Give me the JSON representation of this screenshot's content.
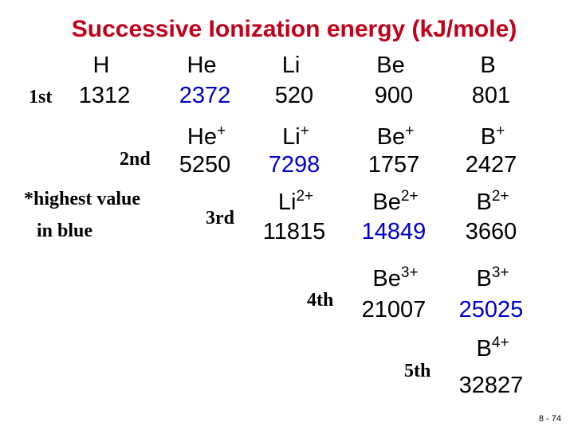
{
  "title": "Successive Ionization energy (kJ/mole)",
  "colors": {
    "title": "#c0001a",
    "highest": "#0000cc",
    "normal": "#000000"
  },
  "elements": [
    {
      "id": "h",
      "symbol": "H"
    },
    {
      "id": "he",
      "symbol": "He"
    },
    {
      "id": "li",
      "symbol": "Li"
    },
    {
      "id": "be",
      "symbol": "Be"
    },
    {
      "id": "b",
      "symbol": "B"
    }
  ],
  "ionizations": [
    {
      "label": "1st",
      "entries": [
        {
          "species": "H",
          "charge": "",
          "value": "1312",
          "highest": false
        },
        {
          "species": "He",
          "charge": "",
          "value": "2372",
          "highest": true
        },
        {
          "species": "Li",
          "charge": "",
          "value": "520",
          "highest": false
        },
        {
          "species": "Be",
          "charge": "",
          "value": "900",
          "highest": false
        },
        {
          "species": "B",
          "charge": "",
          "value": "801",
          "highest": false
        }
      ]
    },
    {
      "label": "2nd",
      "entries": [
        {
          "species": "He",
          "charge": "+",
          "value": "5250",
          "highest": false
        },
        {
          "species": "Li",
          "charge": "+",
          "value": "7298",
          "highest": true
        },
        {
          "species": "Be",
          "charge": "+",
          "value": "1757",
          "highest": false
        },
        {
          "species": "B",
          "charge": "+",
          "value": "2427",
          "highest": false
        }
      ]
    },
    {
      "label": "3rd",
      "entries": [
        {
          "species": "Li",
          "charge": "2+",
          "value": "11815",
          "highest": false
        },
        {
          "species": "Be",
          "charge": "2+",
          "value": "14849",
          "highest": true
        },
        {
          "species": "B",
          "charge": "2+",
          "value": "3660",
          "highest": false
        }
      ]
    },
    {
      "label": "4th",
      "entries": [
        {
          "species": "Be",
          "charge": "3+",
          "value": "21007",
          "highest": false
        },
        {
          "species": "B",
          "charge": "3+",
          "value": "25025",
          "highest": true
        }
      ]
    },
    {
      "label": "5th",
      "entries": [
        {
          "species": "B",
          "charge": "4+",
          "value": "32827",
          "highest": false
        }
      ]
    }
  ],
  "note": [
    "*highest value",
    "in blue"
  ],
  "footer": "8 - 74"
}
